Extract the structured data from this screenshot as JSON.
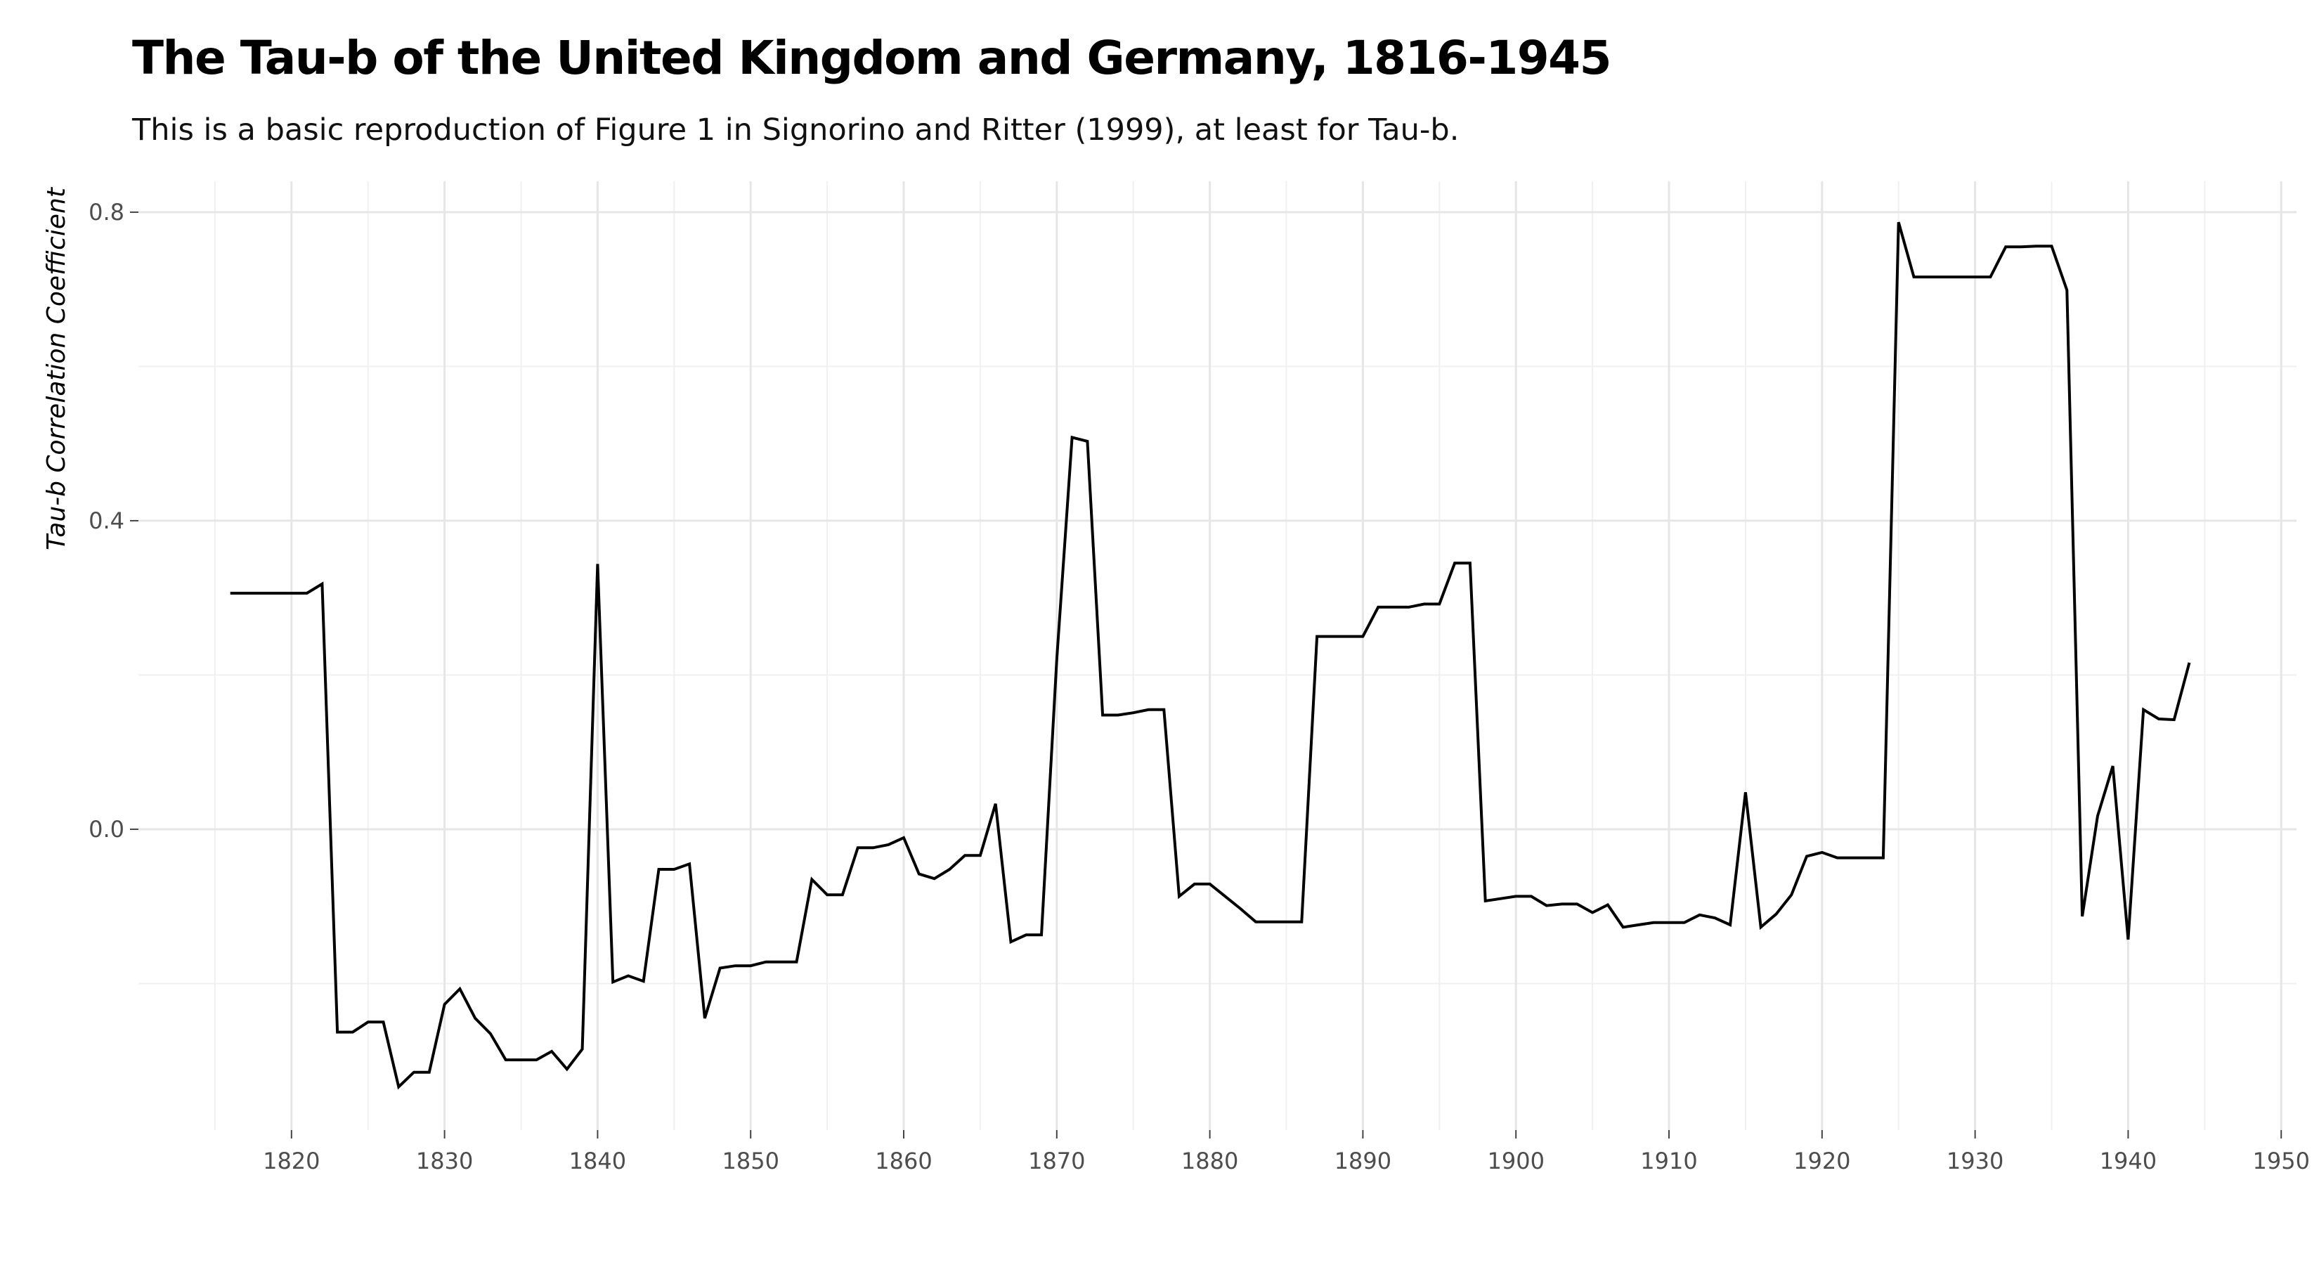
{
  "chart_data": {
    "type": "line",
    "title": "The Tau-b of the United Kingdom and Germany, 1816-1945",
    "subtitle": "This is a basic reproduction of Figure 1 in Signorino and Ritter (1999), at least for Tau-b.",
    "xlabel": "",
    "ylabel": "Tau-b Correlation Coefficient",
    "xlim": [
      1810,
      1951
    ],
    "ylim": [
      -0.39,
      0.84
    ],
    "xticks": [
      1820,
      1830,
      1840,
      1850,
      1860,
      1870,
      1880,
      1890,
      1900,
      1910,
      1920,
      1930,
      1940,
      1950
    ],
    "yticks": [
      "0.0",
      "0.4",
      "0.8"
    ],
    "ytick_values": [
      0.0,
      0.4,
      0.8
    ],
    "grid": true,
    "line_color": "#000000",
    "series": [
      {
        "x": [
          1816,
          1817,
          1818,
          1819,
          1820,
          1821,
          1822,
          1823,
          1824,
          1825,
          1826,
          1827,
          1828,
          1829,
          1830,
          1831,
          1832,
          1833,
          1834,
          1835,
          1836,
          1837,
          1838,
          1839,
          1840,
          1841,
          1842,
          1843,
          1844,
          1845,
          1846,
          1847,
          1848,
          1849,
          1850,
          1851,
          1852,
          1853,
          1854,
          1855,
          1856,
          1857,
          1858,
          1859,
          1860,
          1861,
          1862,
          1863,
          1864,
          1865,
          1866,
          1867,
          1868,
          1869,
          1870,
          1871,
          1872,
          1873,
          1874,
          1875,
          1876,
          1877,
          1878,
          1879,
          1880,
          1881,
          1882,
          1883,
          1884,
          1885,
          1886,
          1887,
          1888,
          1889,
          1890,
          1891,
          1892,
          1893,
          1894,
          1895,
          1896,
          1897,
          1898,
          1899,
          1900,
          1901,
          1902,
          1903,
          1904,
          1905,
          1906,
          1907,
          1908,
          1909,
          1910,
          1911,
          1912,
          1913,
          1914,
          1915,
          1916,
          1917,
          1918,
          1919,
          1920,
          1921,
          1922,
          1923,
          1924,
          1925,
          1926,
          1927,
          1928,
          1929,
          1930,
          1931,
          1932,
          1933,
          1934,
          1935,
          1936,
          1937,
          1938,
          1939,
          1940,
          1941,
          1942,
          1943,
          1944
        ],
        "values": [
          0.306,
          0.306,
          0.306,
          0.306,
          0.306,
          0.306,
          0.318,
          -0.263,
          -0.263,
          -0.25,
          -0.25,
          -0.334,
          -0.315,
          -0.315,
          -0.227,
          -0.207,
          -0.245,
          -0.265,
          -0.299,
          -0.299,
          -0.299,
          -0.288,
          -0.311,
          -0.285,
          0.344,
          -0.198,
          -0.19,
          -0.197,
          -0.052,
          -0.052,
          -0.045,
          -0.245,
          -0.18,
          -0.177,
          -0.177,
          -0.172,
          -0.172,
          -0.172,
          -0.065,
          -0.085,
          -0.085,
          -0.024,
          -0.024,
          -0.02,
          -0.011,
          -0.058,
          -0.064,
          -0.052,
          -0.034,
          -0.034,
          0.033,
          -0.146,
          -0.137,
          -0.137,
          0.22,
          0.508,
          0.503,
          0.148,
          0.148,
          0.151,
          0.155,
          0.155,
          -0.087,
          -0.071,
          -0.071,
          -0.087,
          -0.103,
          -0.12,
          -0.12,
          -0.12,
          -0.12,
          0.25,
          0.25,
          0.25,
          0.25,
          0.288,
          0.288,
          0.288,
          0.292,
          0.292,
          0.345,
          0.345,
          -0.093,
          -0.09,
          -0.087,
          -0.087,
          -0.099,
          -0.097,
          -0.097,
          -0.108,
          -0.098,
          -0.127,
          -0.124,
          -0.121,
          -0.121,
          -0.121,
          -0.111,
          -0.115,
          -0.124,
          0.048,
          -0.127,
          -0.11,
          -0.085,
          -0.035,
          -0.03,
          -0.037,
          -0.037,
          -0.037,
          -0.037,
          0.787,
          0.716,
          0.716,
          0.716,
          0.716,
          0.716,
          0.716,
          0.755,
          0.755,
          0.756,
          0.756,
          0.699,
          -0.113,
          0.017,
          0.082,
          -0.143,
          0.155,
          0.143,
          0.142,
          0.216
        ]
      }
    ]
  }
}
